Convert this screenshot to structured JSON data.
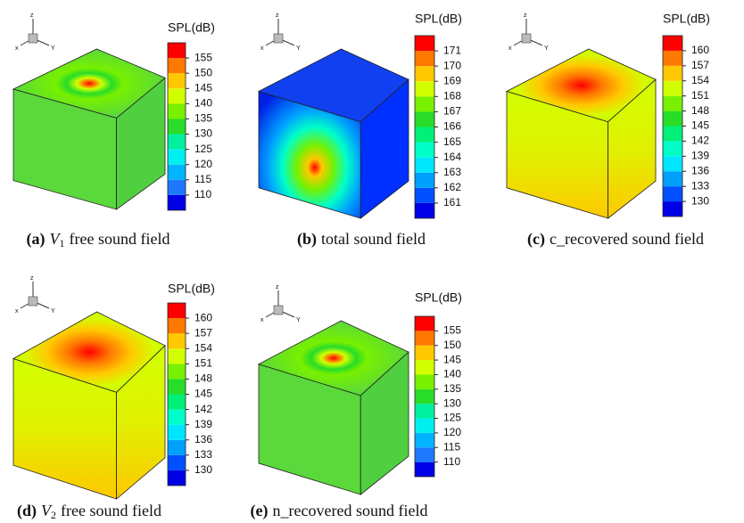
{
  "panels": [
    {
      "axis_labels": [
        "z",
        "x",
        "Y"
      ],
      "colorbar": {
        "title": "SPL(dB)",
        "ticks": [
          155,
          150,
          145,
          140,
          135,
          130,
          125,
          120,
          115,
          110
        ],
        "colors": [
          "#0000e6",
          "#1e78ff",
          "#00b4ff",
          "#00f0f0",
          "#00f0a0",
          "#28dc28",
          "#78f000",
          "#d2ff00",
          "#ffc800",
          "#ff7800",
          "#ff0000"
        ]
      },
      "caption": {
        "label": "(a)",
        "variable": "V",
        "subscript": "1",
        "text": "free sound field"
      }
    },
    {
      "axis_labels": [
        "z",
        "x",
        "Y"
      ],
      "colorbar": {
        "title": "SPL(dB)",
        "ticks": [
          171,
          170,
          169,
          168,
          167,
          166,
          165,
          164,
          163,
          162,
          161
        ],
        "colors": [
          "#0000e6",
          "#0050ff",
          "#00a0ff",
          "#00e6ff",
          "#00ffc8",
          "#00f078",
          "#28dc28",
          "#78f000",
          "#d2ff00",
          "#ffc800",
          "#ff7800",
          "#ff0000"
        ]
      },
      "caption": {
        "label": "(b)",
        "text": "total sound field"
      }
    },
    {
      "axis_labels": [
        "z",
        "x",
        "Y"
      ],
      "colorbar": {
        "title": "SPL(dB)",
        "ticks": [
          160,
          157,
          154,
          151,
          148,
          145,
          142,
          139,
          136,
          133,
          130
        ],
        "colors": [
          "#0000e6",
          "#0050ff",
          "#00a0ff",
          "#00e6ff",
          "#00ffc8",
          "#00f078",
          "#28dc28",
          "#78f000",
          "#d2ff00",
          "#ffc800",
          "#ff7800",
          "#ff0000"
        ]
      },
      "caption": {
        "label": "(c)",
        "text": "c_recovered sound field"
      }
    },
    {
      "axis_labels": [
        "z",
        "x",
        "Y"
      ],
      "colorbar": {
        "title": "SPL(dB)",
        "ticks": [
          160,
          157,
          154,
          151,
          148,
          145,
          142,
          139,
          136,
          133,
          130
        ],
        "colors": [
          "#0000e6",
          "#0050ff",
          "#00a0ff",
          "#00e6ff",
          "#00ffc8",
          "#00f078",
          "#28dc28",
          "#78f000",
          "#d2ff00",
          "#ffc800",
          "#ff7800",
          "#ff0000"
        ]
      },
      "caption": {
        "label": "(d)",
        "variable": "V",
        "subscript": "2",
        "text": "free sound field"
      }
    },
    {
      "axis_labels": [
        "z",
        "x",
        "Y"
      ],
      "colorbar": {
        "title": "SPL(dB)",
        "ticks": [
          155,
          150,
          145,
          140,
          135,
          130,
          125,
          120,
          115,
          110
        ],
        "colors": [
          "#0000e6",
          "#1e78ff",
          "#00b4ff",
          "#00f0f0",
          "#00f0a0",
          "#28dc28",
          "#78f000",
          "#d2ff00",
          "#ffc800",
          "#ff7800",
          "#ff0000"
        ]
      },
      "caption": {
        "label": "(e)",
        "text": "n_recovered sound field"
      }
    }
  ]
}
